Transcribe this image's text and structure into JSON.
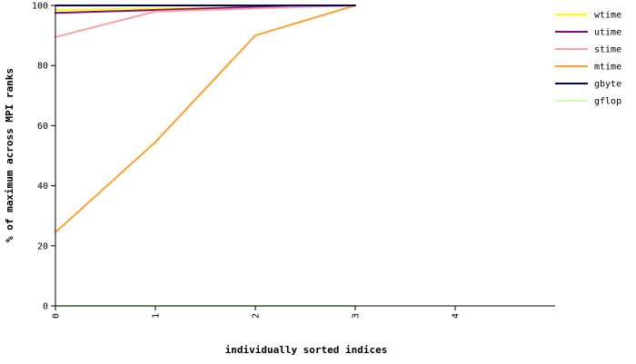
{
  "chart_data": {
    "type": "line",
    "title": "",
    "xlabel": "individually sorted indices",
    "ylabel": "% of maximum across MPI ranks",
    "x_ticks": [
      0,
      1,
      2,
      3,
      4
    ],
    "y_ticks": [
      0,
      20,
      40,
      60,
      80,
      100
    ],
    "xlim": [
      0,
      5
    ],
    "ylim": [
      0,
      100
    ],
    "grid": false,
    "legend_position": "top-right",
    "series": [
      {
        "name": "wtime",
        "color": "#ffff00",
        "x": [
          0,
          1,
          2,
          3
        ],
        "y": [
          98.5,
          99.0,
          99.5,
          100
        ]
      },
      {
        "name": "utime",
        "color": "#7f0f7f",
        "x": [
          0,
          1,
          2,
          3
        ],
        "y": [
          97.5,
          98.5,
          99.5,
          100
        ]
      },
      {
        "name": "stime",
        "color": "#ff9f9f",
        "x": [
          0,
          1,
          2,
          3
        ],
        "y": [
          89.5,
          98.0,
          99.0,
          100
        ]
      },
      {
        "name": "mtime",
        "color": "#ff9f2f",
        "x": [
          0,
          1,
          2,
          3
        ],
        "y": [
          24.5,
          54.5,
          90.0,
          100
        ]
      },
      {
        "name": "gbyte",
        "color": "#00007f",
        "x": [
          0,
          1,
          2,
          3
        ],
        "y": [
          100,
          100,
          100,
          100
        ]
      },
      {
        "name": "gflop",
        "color": "#cfffaf",
        "x": [
          0,
          1,
          2,
          3
        ],
        "y": [
          0,
          0,
          0,
          0
        ]
      }
    ]
  }
}
